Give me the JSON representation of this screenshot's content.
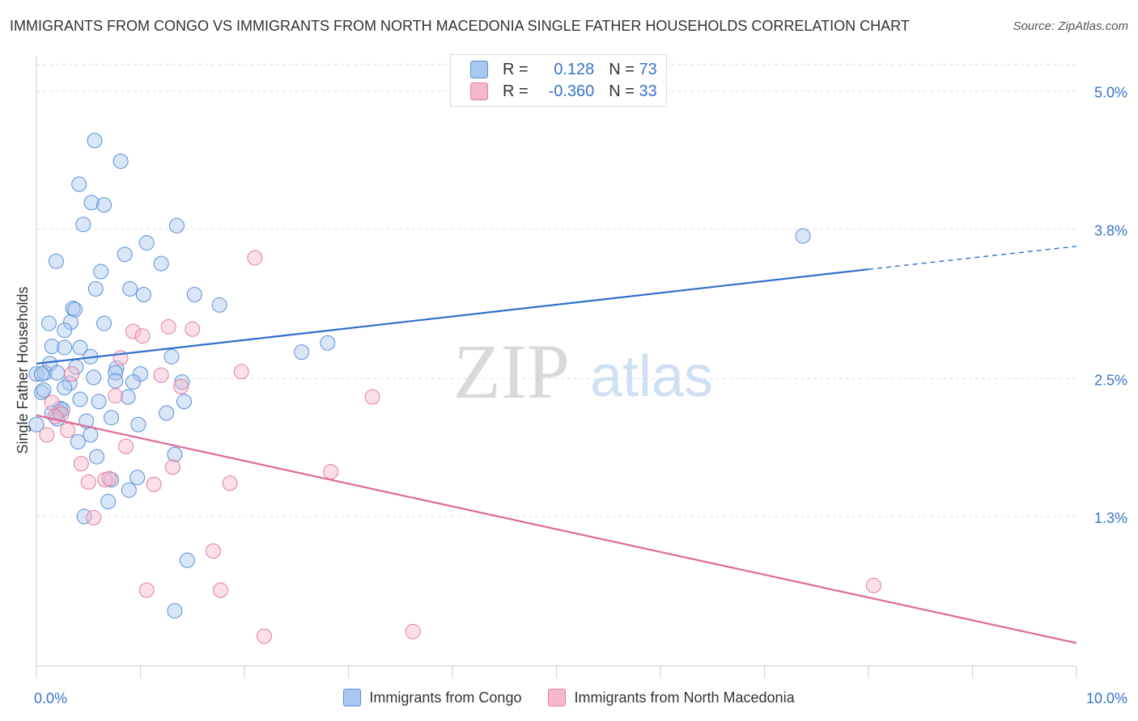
{
  "header": {
    "title": "IMMIGRANTS FROM CONGO VS IMMIGRANTS FROM NORTH MACEDONIA SINGLE FATHER HOUSEHOLDS CORRELATION CHART",
    "source": "Source: ZipAtlas.com"
  },
  "watermark": {
    "zip": "ZIP",
    "atlas": "atlas"
  },
  "stats": {
    "rows": [
      {
        "r_label": "R = ",
        "r_value": "0.128",
        "n_label": "N = ",
        "n_value": "73",
        "color": "#a8c8f0"
      },
      {
        "r_label": "R = ",
        "r_value": "-0.360",
        "n_label": "N = ",
        "n_value": "33",
        "color": "#f6b8cc"
      }
    ]
  },
  "colors": {
    "congo_fill": "#a8c8f0",
    "congo_stroke": "#5b8fd6",
    "congo_line": "#2f6fcc",
    "macedonia_fill": "#f6b8cc",
    "macedonia_stroke": "#e07fa0",
    "macedonia_line": "#e0699a",
    "axis_label": "#3a73c8",
    "grid": "#dddddd"
  },
  "chart_data": {
    "type": "scatter",
    "title": "IMMIGRANTS FROM CONGO VS IMMIGRANTS FROM NORTH MACEDONIA SINGLE FATHER HOUSEHOLDS CORRELATION CHART",
    "xlabel": "",
    "ylabel": "Single Father Households",
    "xlim": [
      0,
      10
    ],
    "ylim": [
      0,
      5.3
    ],
    "x_tick_labels": [
      {
        "value": 0,
        "label": "0.0%"
      },
      {
        "value": 10,
        "label": "10.0%"
      }
    ],
    "y_ticks": [
      {
        "value": 1.3,
        "label": "1.3%"
      },
      {
        "value": 2.5,
        "label": "2.5%"
      },
      {
        "value": 3.8,
        "label": "3.8%"
      },
      {
        "value": 5.0,
        "label": "5.0%"
      }
    ],
    "x_minor_ticks": [
      0,
      1,
      2,
      3,
      4,
      5,
      6,
      7,
      8,
      9,
      10
    ],
    "grid": true,
    "legend_position": "bottom",
    "series": [
      {
        "name": "Immigrants from Congo",
        "color": "#a8c8f0",
        "trend": {
          "x0": 0,
          "y0": 2.63,
          "x1": 8.0,
          "y1": 3.45,
          "dashed_to_x": 10,
          "dashed_to_y": 3.65
        },
        "points": [
          [
            0.56,
            4.57
          ],
          [
            0.81,
            4.39
          ],
          [
            0.41,
            4.19
          ],
          [
            0.53,
            4.03
          ],
          [
            0.65,
            4.01
          ],
          [
            0.45,
            3.84
          ],
          [
            1.35,
            3.83
          ],
          [
            0.85,
            3.58
          ],
          [
            1.06,
            3.68
          ],
          [
            1.2,
            3.5
          ],
          [
            0.19,
            3.52
          ],
          [
            0.62,
            3.43
          ],
          [
            0.57,
            3.28
          ],
          [
            0.9,
            3.28
          ],
          [
            1.03,
            3.23
          ],
          [
            1.52,
            3.23
          ],
          [
            1.76,
            3.14
          ],
          [
            0.35,
            3.11
          ],
          [
            0.37,
            3.1
          ],
          [
            0.65,
            2.98
          ],
          [
            0.33,
            2.99
          ],
          [
            0.12,
            2.98
          ],
          [
            0.27,
            2.92
          ],
          [
            0.15,
            2.78
          ],
          [
            0.27,
            2.77
          ],
          [
            0.42,
            2.77
          ],
          [
            2.55,
            2.73
          ],
          [
            2.8,
            2.81
          ],
          [
            0.52,
            2.69
          ],
          [
            1.3,
            2.69
          ],
          [
            0.13,
            2.63
          ],
          [
            0.38,
            2.6
          ],
          [
            0.77,
            2.59
          ],
          [
            0.76,
            2.55
          ],
          [
            1.0,
            2.54
          ],
          [
            0.0,
            2.54
          ],
          [
            0.08,
            2.55
          ],
          [
            0.2,
            2.55
          ],
          [
            0.05,
            2.54
          ],
          [
            0.55,
            2.51
          ],
          [
            0.76,
            2.48
          ],
          [
            0.93,
            2.47
          ],
          [
            1.4,
            2.47
          ],
          [
            0.32,
            2.46
          ],
          [
            0.27,
            2.42
          ],
          [
            0.05,
            2.38
          ],
          [
            0.07,
            2.4
          ],
          [
            0.88,
            2.34
          ],
          [
            0.42,
            2.32
          ],
          [
            0.6,
            2.3
          ],
          [
            1.42,
            2.3
          ],
          [
            0.23,
            2.24
          ],
          [
            0.15,
            2.2
          ],
          [
            0.22,
            2.21
          ],
          [
            0.25,
            2.23
          ],
          [
            1.25,
            2.2
          ],
          [
            0.72,
            2.16
          ],
          [
            0.48,
            2.13
          ],
          [
            0.2,
            2.15
          ],
          [
            0.98,
            2.1
          ],
          [
            0.52,
            2.01
          ],
          [
            0.4,
            1.95
          ],
          [
            0.58,
            1.82
          ],
          [
            1.33,
            1.84
          ],
          [
            0.97,
            1.64
          ],
          [
            0.72,
            1.62
          ],
          [
            0.89,
            1.53
          ],
          [
            0.69,
            1.43
          ],
          [
            0.46,
            1.3
          ],
          [
            1.45,
            0.92
          ],
          [
            1.33,
            0.48
          ],
          [
            7.37,
            3.74
          ],
          [
            0.0,
            2.1
          ]
        ]
      },
      {
        "name": "Immigrants from North Macedonia",
        "color": "#f6b8cc",
        "trend": {
          "x0": 0,
          "y0": 2.18,
          "x1": 10,
          "y1": 0.2
        },
        "points": [
          [
            2.1,
            3.55
          ],
          [
            1.27,
            2.95
          ],
          [
            1.5,
            2.93
          ],
          [
            0.93,
            2.91
          ],
          [
            1.02,
            2.87
          ],
          [
            0.81,
            2.68
          ],
          [
            1.97,
            2.56
          ],
          [
            1.2,
            2.53
          ],
          [
            0.34,
            2.54
          ],
          [
            1.39,
            2.43
          ],
          [
            3.23,
            2.34
          ],
          [
            0.76,
            2.35
          ],
          [
            0.15,
            2.29
          ],
          [
            0.24,
            2.19
          ],
          [
            0.18,
            2.17
          ],
          [
            0.3,
            2.05
          ],
          [
            0.1,
            2.01
          ],
          [
            0.86,
            1.91
          ],
          [
            0.43,
            1.76
          ],
          [
            1.31,
            1.73
          ],
          [
            2.83,
            1.69
          ],
          [
            0.66,
            1.62
          ],
          [
            0.7,
            1.63
          ],
          [
            0.5,
            1.6
          ],
          [
            1.13,
            1.58
          ],
          [
            1.86,
            1.59
          ],
          [
            0.55,
            1.29
          ],
          [
            1.7,
            1.0
          ],
          [
            1.06,
            0.66
          ],
          [
            1.77,
            0.66
          ],
          [
            8.05,
            0.7
          ],
          [
            3.62,
            0.3
          ],
          [
            2.19,
            0.26
          ]
        ]
      }
    ]
  }
}
